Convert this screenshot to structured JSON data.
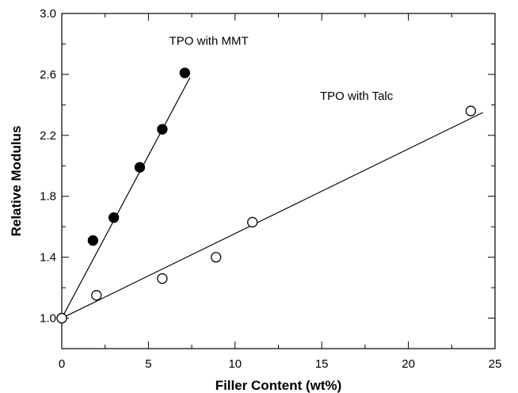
{
  "chart_data": {
    "type": "scatter",
    "title": "",
    "xlabel": "Filler Content (wt%)",
    "ylabel": "Relative Modulus",
    "xlim": [
      0,
      25
    ],
    "ylim": [
      0.8,
      3.0
    ],
    "x_ticks": [
      "0",
      "5",
      "10",
      "15",
      "20",
      "25"
    ],
    "y_ticks": [
      "1.0",
      "1.4",
      "1.8",
      "2.2",
      "2.6",
      "3.0"
    ],
    "grid": false,
    "series": [
      {
        "name": "TPO with MMT",
        "marker": "filled-circle",
        "color": "#000000",
        "points": [
          {
            "x": 0,
            "y": 1.0
          },
          {
            "x": 1.8,
            "y": 1.51
          },
          {
            "x": 3.0,
            "y": 1.66
          },
          {
            "x": 4.5,
            "y": 1.99
          },
          {
            "x": 5.8,
            "y": 2.24
          },
          {
            "x": 7.1,
            "y": 2.61
          }
        ],
        "fit_line": {
          "x": [
            0,
            7.4
          ],
          "y": [
            1.0,
            2.58
          ]
        }
      },
      {
        "name": "TPO with Talc",
        "marker": "open-circle",
        "color": "#000000",
        "points": [
          {
            "x": 2.0,
            "y": 1.15
          },
          {
            "x": 5.8,
            "y": 1.26
          },
          {
            "x": 8.9,
            "y": 1.4
          },
          {
            "x": 11.0,
            "y": 1.63
          },
          {
            "x": 23.6,
            "y": 2.36
          },
          {
            "x": 0,
            "y": 1.0
          }
        ],
        "fit_line": {
          "x": [
            0,
            24.3
          ],
          "y": [
            1.0,
            2.35
          ]
        }
      }
    ]
  }
}
